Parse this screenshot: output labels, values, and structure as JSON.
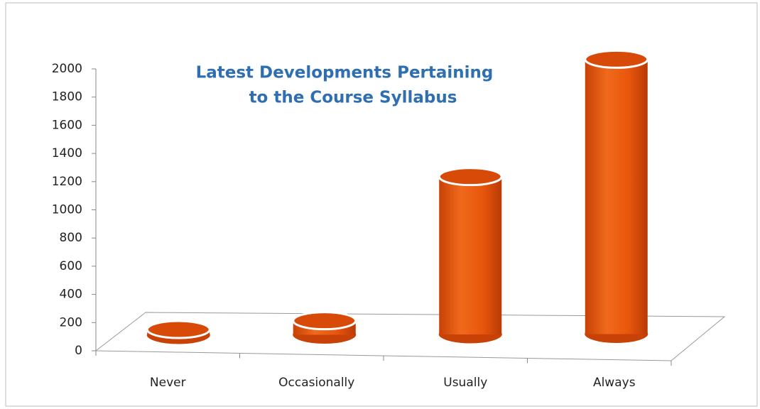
{
  "chart_data": {
    "type": "bar3d",
    "title": [
      "Latest Developments Pertaining",
      "to the Course Syllabus"
    ],
    "categories": [
      "Never",
      "Occasionally",
      "Usually",
      "Always"
    ],
    "values": [
      40,
      100,
      1120,
      1950
    ],
    "color": "#e8560c",
    "ylim": [
      0,
      2000
    ],
    "yticks": [
      0,
      200,
      400,
      600,
      800,
      1000,
      1200,
      1400,
      1600,
      1800,
      2000
    ]
  }
}
